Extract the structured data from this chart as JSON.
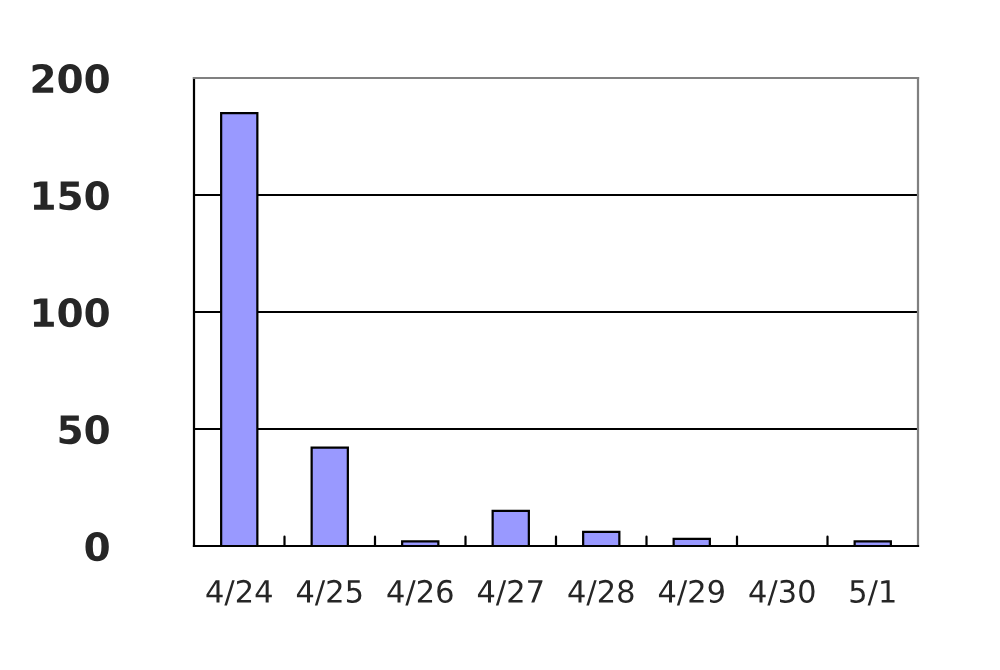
{
  "chart_data": {
    "type": "bar",
    "categories": [
      "4/24",
      "4/25",
      "4/26",
      "4/27",
      "4/28",
      "4/29",
      "4/30",
      "5/1"
    ],
    "values": [
      185,
      42,
      2,
      15,
      6,
      3,
      null,
      2
    ],
    "color": "#9999ff",
    "ylim": [
      0,
      200
    ],
    "yticks": [
      0,
      50,
      100,
      150,
      200
    ],
    "grid": "y"
  }
}
